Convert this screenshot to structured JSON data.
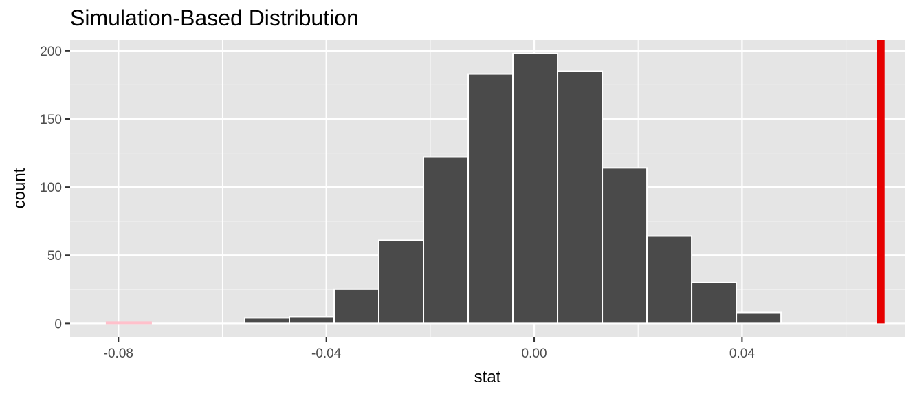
{
  "chart_data": {
    "type": "bar",
    "title": "Simulation-Based Distribution",
    "xlabel": "stat",
    "ylabel": "count",
    "xlim": [
      -0.0893,
      0.0713
    ],
    "ylim": [
      -9.9,
      208
    ],
    "x_ticks": [
      -0.08,
      -0.04,
      0.0,
      0.04
    ],
    "x_tick_labels": [
      "-0.08",
      "-0.04",
      "0.00",
      "0.04"
    ],
    "y_ticks": [
      0,
      50,
      100,
      150,
      200
    ],
    "y_tick_labels": [
      "0",
      "50",
      "100",
      "150",
      "200"
    ],
    "grid": true,
    "bin_width": 0.0086,
    "bins": [
      {
        "x0": -0.0823,
        "x1": -0.0737,
        "count": 1,
        "shaded": true
      },
      {
        "x0": -0.0557,
        "x1": -0.0471,
        "count": 4
      },
      {
        "x0": -0.0471,
        "x1": -0.0385,
        "count": 5
      },
      {
        "x0": -0.0385,
        "x1": -0.0299,
        "count": 25
      },
      {
        "x0": -0.0299,
        "x1": -0.0213,
        "count": 61
      },
      {
        "x0": -0.0213,
        "x1": -0.0127,
        "count": 122
      },
      {
        "x0": -0.0127,
        "x1": -0.0041,
        "count": 183
      },
      {
        "x0": -0.0041,
        "x1": 0.0045,
        "count": 198
      },
      {
        "x0": 0.0045,
        "x1": 0.0131,
        "count": 185
      },
      {
        "x0": 0.0131,
        "x1": 0.0217,
        "count": 114
      },
      {
        "x0": 0.0217,
        "x1": 0.0303,
        "count": 64
      },
      {
        "x0": 0.0303,
        "x1": 0.0389,
        "count": 30
      },
      {
        "x0": 0.0389,
        "x1": 0.0475,
        "count": 8
      }
    ],
    "observed_stat": 0.0667,
    "colors": {
      "panel": "#e5e5e5",
      "grid": "#ffffff",
      "bar_fill": "#4a4a4a",
      "bar_outline": "#ffffff",
      "shaded_fill": "#ffc0cb",
      "observed_line": "#e60000"
    }
  }
}
